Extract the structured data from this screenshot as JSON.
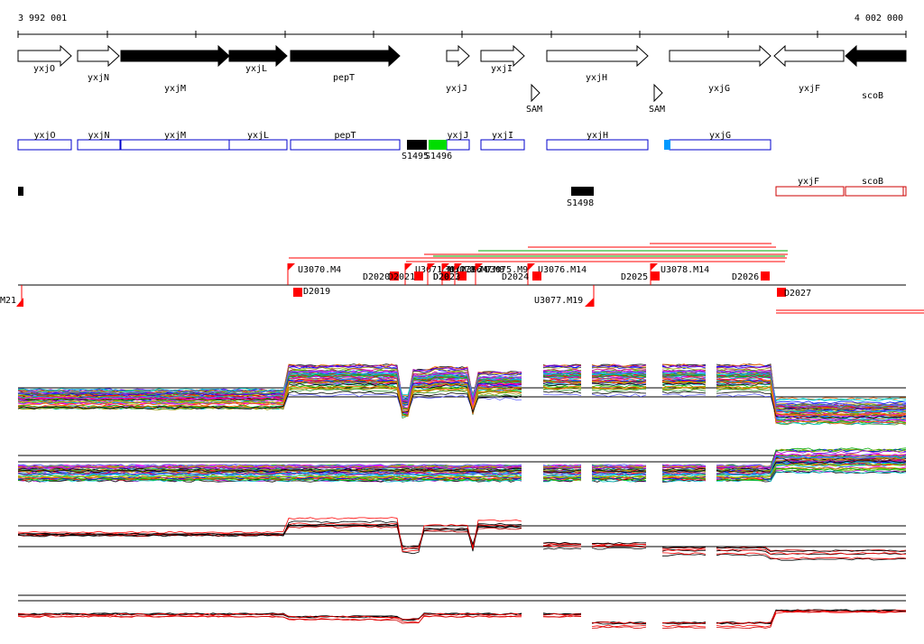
{
  "coords": {
    "start": "3 992 001",
    "end": "4 002 000"
  },
  "colors": {
    "gene_fill": "#000000",
    "gene_outline": "#000000",
    "annot_box": "#0000cc",
    "intergenic_box": "#cc0000",
    "segment_red": "#ff0000",
    "segment_green": "#00aa00",
    "feature_green": "#00dd00",
    "feature_blue": "#0099ff"
  },
  "genes": [
    {
      "label": "yxjO",
      "strand": "+",
      "filled": false
    },
    {
      "label": "yxjN",
      "strand": "+",
      "filled": false
    },
    {
      "label": "yxjM",
      "strand": "+",
      "filled": true
    },
    {
      "label": "yxjL",
      "strand": "+",
      "filled": true
    },
    {
      "label": "pepT",
      "strand": "+",
      "filled": true
    },
    {
      "label": "yxjJ",
      "strand": "+",
      "filled": false
    },
    {
      "label": "yxjI",
      "strand": "+",
      "filled": false
    },
    {
      "label": "yxjH",
      "strand": "+",
      "filled": false
    },
    {
      "label": "yxjG",
      "strand": "+",
      "filled": false
    },
    {
      "label": "yxjF",
      "strand": "-",
      "filled": false
    },
    {
      "label": "scoB",
      "strand": "-",
      "filled": true
    }
  ],
  "riboswitches": [
    "SAM",
    "SAM"
  ],
  "annotation_boxes": [
    "yxjO",
    "yxjN",
    "yxjM",
    "yxjL",
    "pepT",
    "yxjJ",
    "yxjI",
    "yxjH",
    "yxjG"
  ],
  "small_features": [
    "S1495",
    "S1496",
    "S1498"
  ],
  "intergenic_boxes": [
    "yxjF",
    "scoB"
  ],
  "segments_top": [
    "U3070.M4",
    "U3071.M5",
    "U3072.M6",
    "U3073.M7",
    "U3074.M8",
    "U3075.M9",
    "U3076.M14",
    "U3078.M14"
  ],
  "segments_down": [
    "D2019",
    "D2020",
    "D2021",
    "D2022",
    "D2023",
    "D2024",
    "D2025",
    "D2026",
    "D2027"
  ],
  "segments_bottom": [
    "U3077.M19",
    "M21"
  ]
}
